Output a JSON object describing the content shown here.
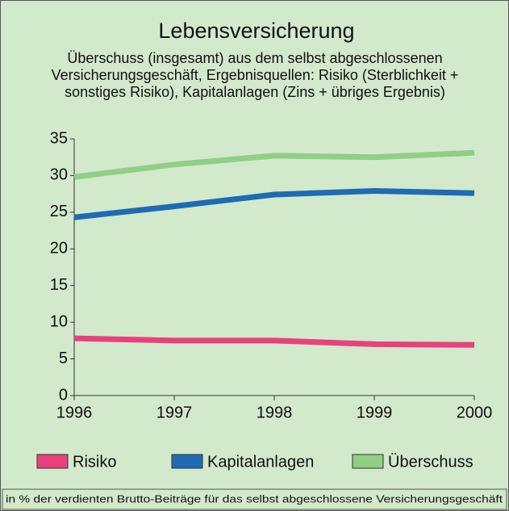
{
  "chart_data": {
    "type": "line",
    "title": "Lebensversicherung",
    "subtitle": [
      "Überschuss (insgesamt) aus dem selbst abgeschlossenen",
      "Versicherungsgeschäft, Ergebnisquellen: Risiko (Sterblichkeit +",
      "sonstiges Risiko), Kapitalanlagen (Zins + übriges Ergebnis)"
    ],
    "x": [
      1996,
      1997,
      1998,
      1999,
      2000
    ],
    "xlim": [
      1996,
      2000
    ],
    "xticks": [
      1996,
      1997,
      1998,
      1999,
      2000
    ],
    "ylim": [
      0,
      35
    ],
    "yticks": [
      0,
      5,
      10,
      15,
      20,
      25,
      30,
      35
    ],
    "grid": false,
    "series": [
      {
        "name": "Risiko",
        "color": "#e8417c",
        "values": [
          7.8,
          7.5,
          7.5,
          7.0,
          6.9
        ]
      },
      {
        "name": "Kapitalanlagen",
        "color": "#1e6bb4",
        "values": [
          24.3,
          25.8,
          27.4,
          27.9,
          27.6
        ]
      },
      {
        "name": "Überschuss",
        "color": "#8fcf86",
        "values": [
          29.8,
          31.5,
          32.7,
          32.5,
          33.1
        ]
      }
    ],
    "footnote": "in % der verdienten Brutto-Beiträge für das selbst abgeschlossene Versicherungsgeschäft"
  }
}
